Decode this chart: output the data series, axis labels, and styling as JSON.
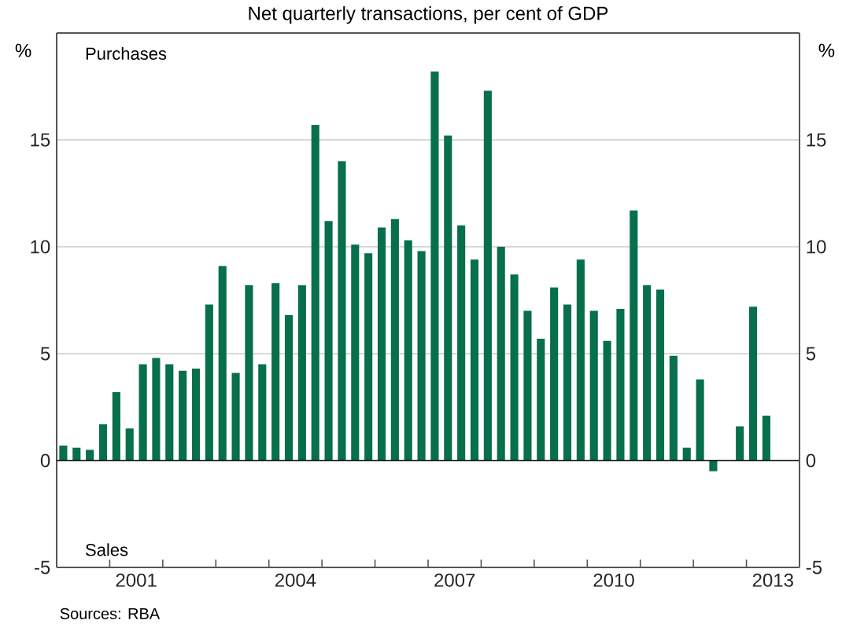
{
  "chart_data": {
    "type": "bar",
    "title": "Net quarterly transactions, per cent of GDP",
    "ylabel": "%",
    "y2label": "%",
    "annotations": [
      "Purchases",
      "Sales",
      "Sources: RBA"
    ],
    "x": [
      2000.125,
      2000.375,
      2000.625,
      2000.875,
      2001.125,
      2001.375,
      2001.625,
      2001.875,
      2002.125,
      2002.375,
      2002.625,
      2002.875,
      2003.125,
      2003.375,
      2003.625,
      2003.875,
      2004.125,
      2004.375,
      2004.625,
      2004.875,
      2005.125,
      2005.375,
      2005.625,
      2005.875,
      2006.125,
      2006.375,
      2006.625,
      2006.875,
      2007.125,
      2007.375,
      2007.625,
      2007.875,
      2008.125,
      2008.375,
      2008.625,
      2008.875,
      2009.125,
      2009.375,
      2009.625,
      2009.875,
      2010.125,
      2010.375,
      2010.625,
      2010.875,
      2011.125,
      2011.375,
      2011.625,
      2011.875,
      2012.125,
      2012.375,
      2012.625,
      2012.875,
      2013.125,
      2013.375
    ],
    "values": [
      0.7,
      0.6,
      0.5,
      1.7,
      3.2,
      1.5,
      4.5,
      4.8,
      4.5,
      4.2,
      4.3,
      7.3,
      9.1,
      4.1,
      8.2,
      4.5,
      8.3,
      6.8,
      8.2,
      15.7,
      11.2,
      14.0,
      10.1,
      9.7,
      10.9,
      11.3,
      10.3,
      9.8,
      18.2,
      15.2,
      11.0,
      9.4,
      17.3,
      10.0,
      8.7,
      7.0,
      5.7,
      8.1,
      7.3,
      9.4,
      7.0,
      5.6,
      7.1,
      11.7,
      8.2,
      8.0,
      4.9,
      0.6,
      3.8,
      -0.5,
      null,
      1.6,
      7.2,
      2.1
    ],
    "color": "#076f4a",
    "xlim": [
      2000,
      2014
    ],
    "xticks": [
      {
        "value": 2001,
        "label": null
      },
      {
        "value": 2001.5,
        "label": "2001"
      },
      {
        "value": 2002,
        "label": null
      },
      {
        "value": 2003,
        "label": null
      },
      {
        "value": 2004,
        "label": null
      },
      {
        "value": 2004.5,
        "label": "2004"
      },
      {
        "value": 2005,
        "label": null
      },
      {
        "value": 2006,
        "label": null
      },
      {
        "value": 2007,
        "label": null
      },
      {
        "value": 2007.5,
        "label": "2007"
      },
      {
        "value": 2008,
        "label": null
      },
      {
        "value": 2009,
        "label": null
      },
      {
        "value": 2010,
        "label": null
      },
      {
        "value": 2010.5,
        "label": "2010"
      },
      {
        "value": 2011,
        "label": null
      },
      {
        "value": 2012,
        "label": null
      },
      {
        "value": 2013,
        "label": null
      },
      {
        "value": 2013.5,
        "label": "2013"
      }
    ],
    "ylim": [
      -5,
      20
    ],
    "yticks": [
      -5,
      0,
      5,
      10,
      15
    ],
    "y2lim": [
      -5,
      20
    ],
    "y2ticks": [
      -5,
      0,
      5,
      10,
      15
    ],
    "grid": "y"
  }
}
